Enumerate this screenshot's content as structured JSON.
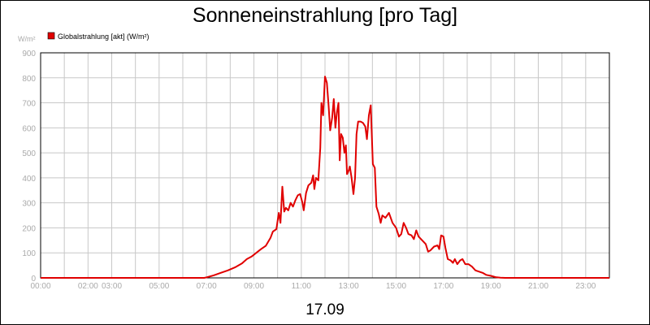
{
  "chart_data": {
    "type": "line",
    "title": "Sonneneinstrahlung [pro Tag]",
    "ylabel": "W/m²",
    "xlabel": "17.09",
    "ylim": [
      0,
      900
    ],
    "xlim": [
      0,
      24
    ],
    "y_ticks": [
      "0",
      "100",
      "200",
      "300",
      "400",
      "500",
      "600",
      "700",
      "800",
      "900"
    ],
    "x_ticks": [
      {
        "h": 0,
        "label": "00:00"
      },
      {
        "h": 1,
        "label": ""
      },
      {
        "h": 2,
        "label": "02:00"
      },
      {
        "h": 3,
        "label": "03:00"
      },
      {
        "h": 4,
        "label": ""
      },
      {
        "h": 5,
        "label": "05:00"
      },
      {
        "h": 6,
        "label": ""
      },
      {
        "h": 7,
        "label": "07:00"
      },
      {
        "h": 8,
        "label": ""
      },
      {
        "h": 9,
        "label": "09:00"
      },
      {
        "h": 10,
        "label": ""
      },
      {
        "h": 11,
        "label": "11:00"
      },
      {
        "h": 12,
        "label": ""
      },
      {
        "h": 13,
        "label": "13:00"
      },
      {
        "h": 14,
        "label": ""
      },
      {
        "h": 15,
        "label": "15:00"
      },
      {
        "h": 16,
        "label": ""
      },
      {
        "h": 17,
        "label": "17:00"
      },
      {
        "h": 18,
        "label": ""
      },
      {
        "h": 19,
        "label": "19:00"
      },
      {
        "h": 20,
        "label": ""
      },
      {
        "h": 21,
        "label": "21:00"
      },
      {
        "h": 22,
        "label": ""
      },
      {
        "h": 23,
        "label": "23:00"
      }
    ],
    "grid": true,
    "legend_position": "top-left",
    "series": [
      {
        "name": "Globalstrahlung [akt] (W/m²)",
        "color": "#e00000",
        "points": [
          [
            0,
            0
          ],
          [
            6.9,
            0
          ],
          [
            7.0,
            2
          ],
          [
            7.3,
            10
          ],
          [
            7.6,
            20
          ],
          [
            7.9,
            30
          ],
          [
            8.2,
            42
          ],
          [
            8.5,
            58
          ],
          [
            8.7,
            75
          ],
          [
            8.9,
            85
          ],
          [
            9.1,
            100
          ],
          [
            9.3,
            115
          ],
          [
            9.5,
            128
          ],
          [
            9.7,
            160
          ],
          [
            9.8,
            185
          ],
          [
            9.95,
            195
          ],
          [
            10.05,
            260
          ],
          [
            10.12,
            220
          ],
          [
            10.2,
            365
          ],
          [
            10.28,
            265
          ],
          [
            10.35,
            280
          ],
          [
            10.45,
            270
          ],
          [
            10.55,
            300
          ],
          [
            10.65,
            285
          ],
          [
            10.75,
            310
          ],
          [
            10.85,
            330
          ],
          [
            10.95,
            335
          ],
          [
            11.05,
            300
          ],
          [
            11.1,
            270
          ],
          [
            11.2,
            340
          ],
          [
            11.3,
            370
          ],
          [
            11.42,
            380
          ],
          [
            11.5,
            410
          ],
          [
            11.55,
            355
          ],
          [
            11.62,
            400
          ],
          [
            11.72,
            390
          ],
          [
            11.8,
            520
          ],
          [
            11.85,
            700
          ],
          [
            11.92,
            650
          ],
          [
            12.0,
            805
          ],
          [
            12.08,
            780
          ],
          [
            12.15,
            690
          ],
          [
            12.22,
            590
          ],
          [
            12.3,
            640
          ],
          [
            12.37,
            715
          ],
          [
            12.44,
            600
          ],
          [
            12.5,
            660
          ],
          [
            12.57,
            700
          ],
          [
            12.62,
            470
          ],
          [
            12.68,
            575
          ],
          [
            12.75,
            560
          ],
          [
            12.82,
            500
          ],
          [
            12.88,
            530
          ],
          [
            12.93,
            415
          ],
          [
            13.0,
            430
          ],
          [
            13.05,
            445
          ],
          [
            13.12,
            400
          ],
          [
            13.2,
            335
          ],
          [
            13.27,
            400
          ],
          [
            13.33,
            575
          ],
          [
            13.4,
            625
          ],
          [
            13.5,
            625
          ],
          [
            13.6,
            620
          ],
          [
            13.7,
            605
          ],
          [
            13.77,
            555
          ],
          [
            13.85,
            650
          ],
          [
            13.93,
            690
          ],
          [
            14.02,
            455
          ],
          [
            14.1,
            440
          ],
          [
            14.17,
            285
          ],
          [
            14.27,
            255
          ],
          [
            14.35,
            220
          ],
          [
            14.42,
            250
          ],
          [
            14.55,
            240
          ],
          [
            14.7,
            260
          ],
          [
            14.85,
            220
          ],
          [
            15.0,
            200
          ],
          [
            15.12,
            165
          ],
          [
            15.22,
            175
          ],
          [
            15.32,
            220
          ],
          [
            15.42,
            200
          ],
          [
            15.52,
            175
          ],
          [
            15.65,
            170
          ],
          [
            15.75,
            155
          ],
          [
            15.85,
            190
          ],
          [
            15.95,
            165
          ],
          [
            16.1,
            150
          ],
          [
            16.25,
            135
          ],
          [
            16.35,
            105
          ],
          [
            16.45,
            110
          ],
          [
            16.6,
            125
          ],
          [
            16.75,
            130
          ],
          [
            16.82,
            115
          ],
          [
            16.9,
            170
          ],
          [
            17.0,
            165
          ],
          [
            17.08,
            120
          ],
          [
            17.18,
            75
          ],
          [
            17.3,
            70
          ],
          [
            17.4,
            60
          ],
          [
            17.48,
            75
          ],
          [
            17.58,
            55
          ],
          [
            17.7,
            70
          ],
          [
            17.8,
            75
          ],
          [
            17.92,
            55
          ],
          [
            18.05,
            55
          ],
          [
            18.2,
            45
          ],
          [
            18.35,
            30
          ],
          [
            18.5,
            25
          ],
          [
            18.65,
            20
          ],
          [
            18.8,
            12
          ],
          [
            19.0,
            8
          ],
          [
            19.2,
            3
          ],
          [
            19.4,
            1
          ],
          [
            19.6,
            0
          ],
          [
            24,
            0
          ]
        ]
      }
    ]
  }
}
